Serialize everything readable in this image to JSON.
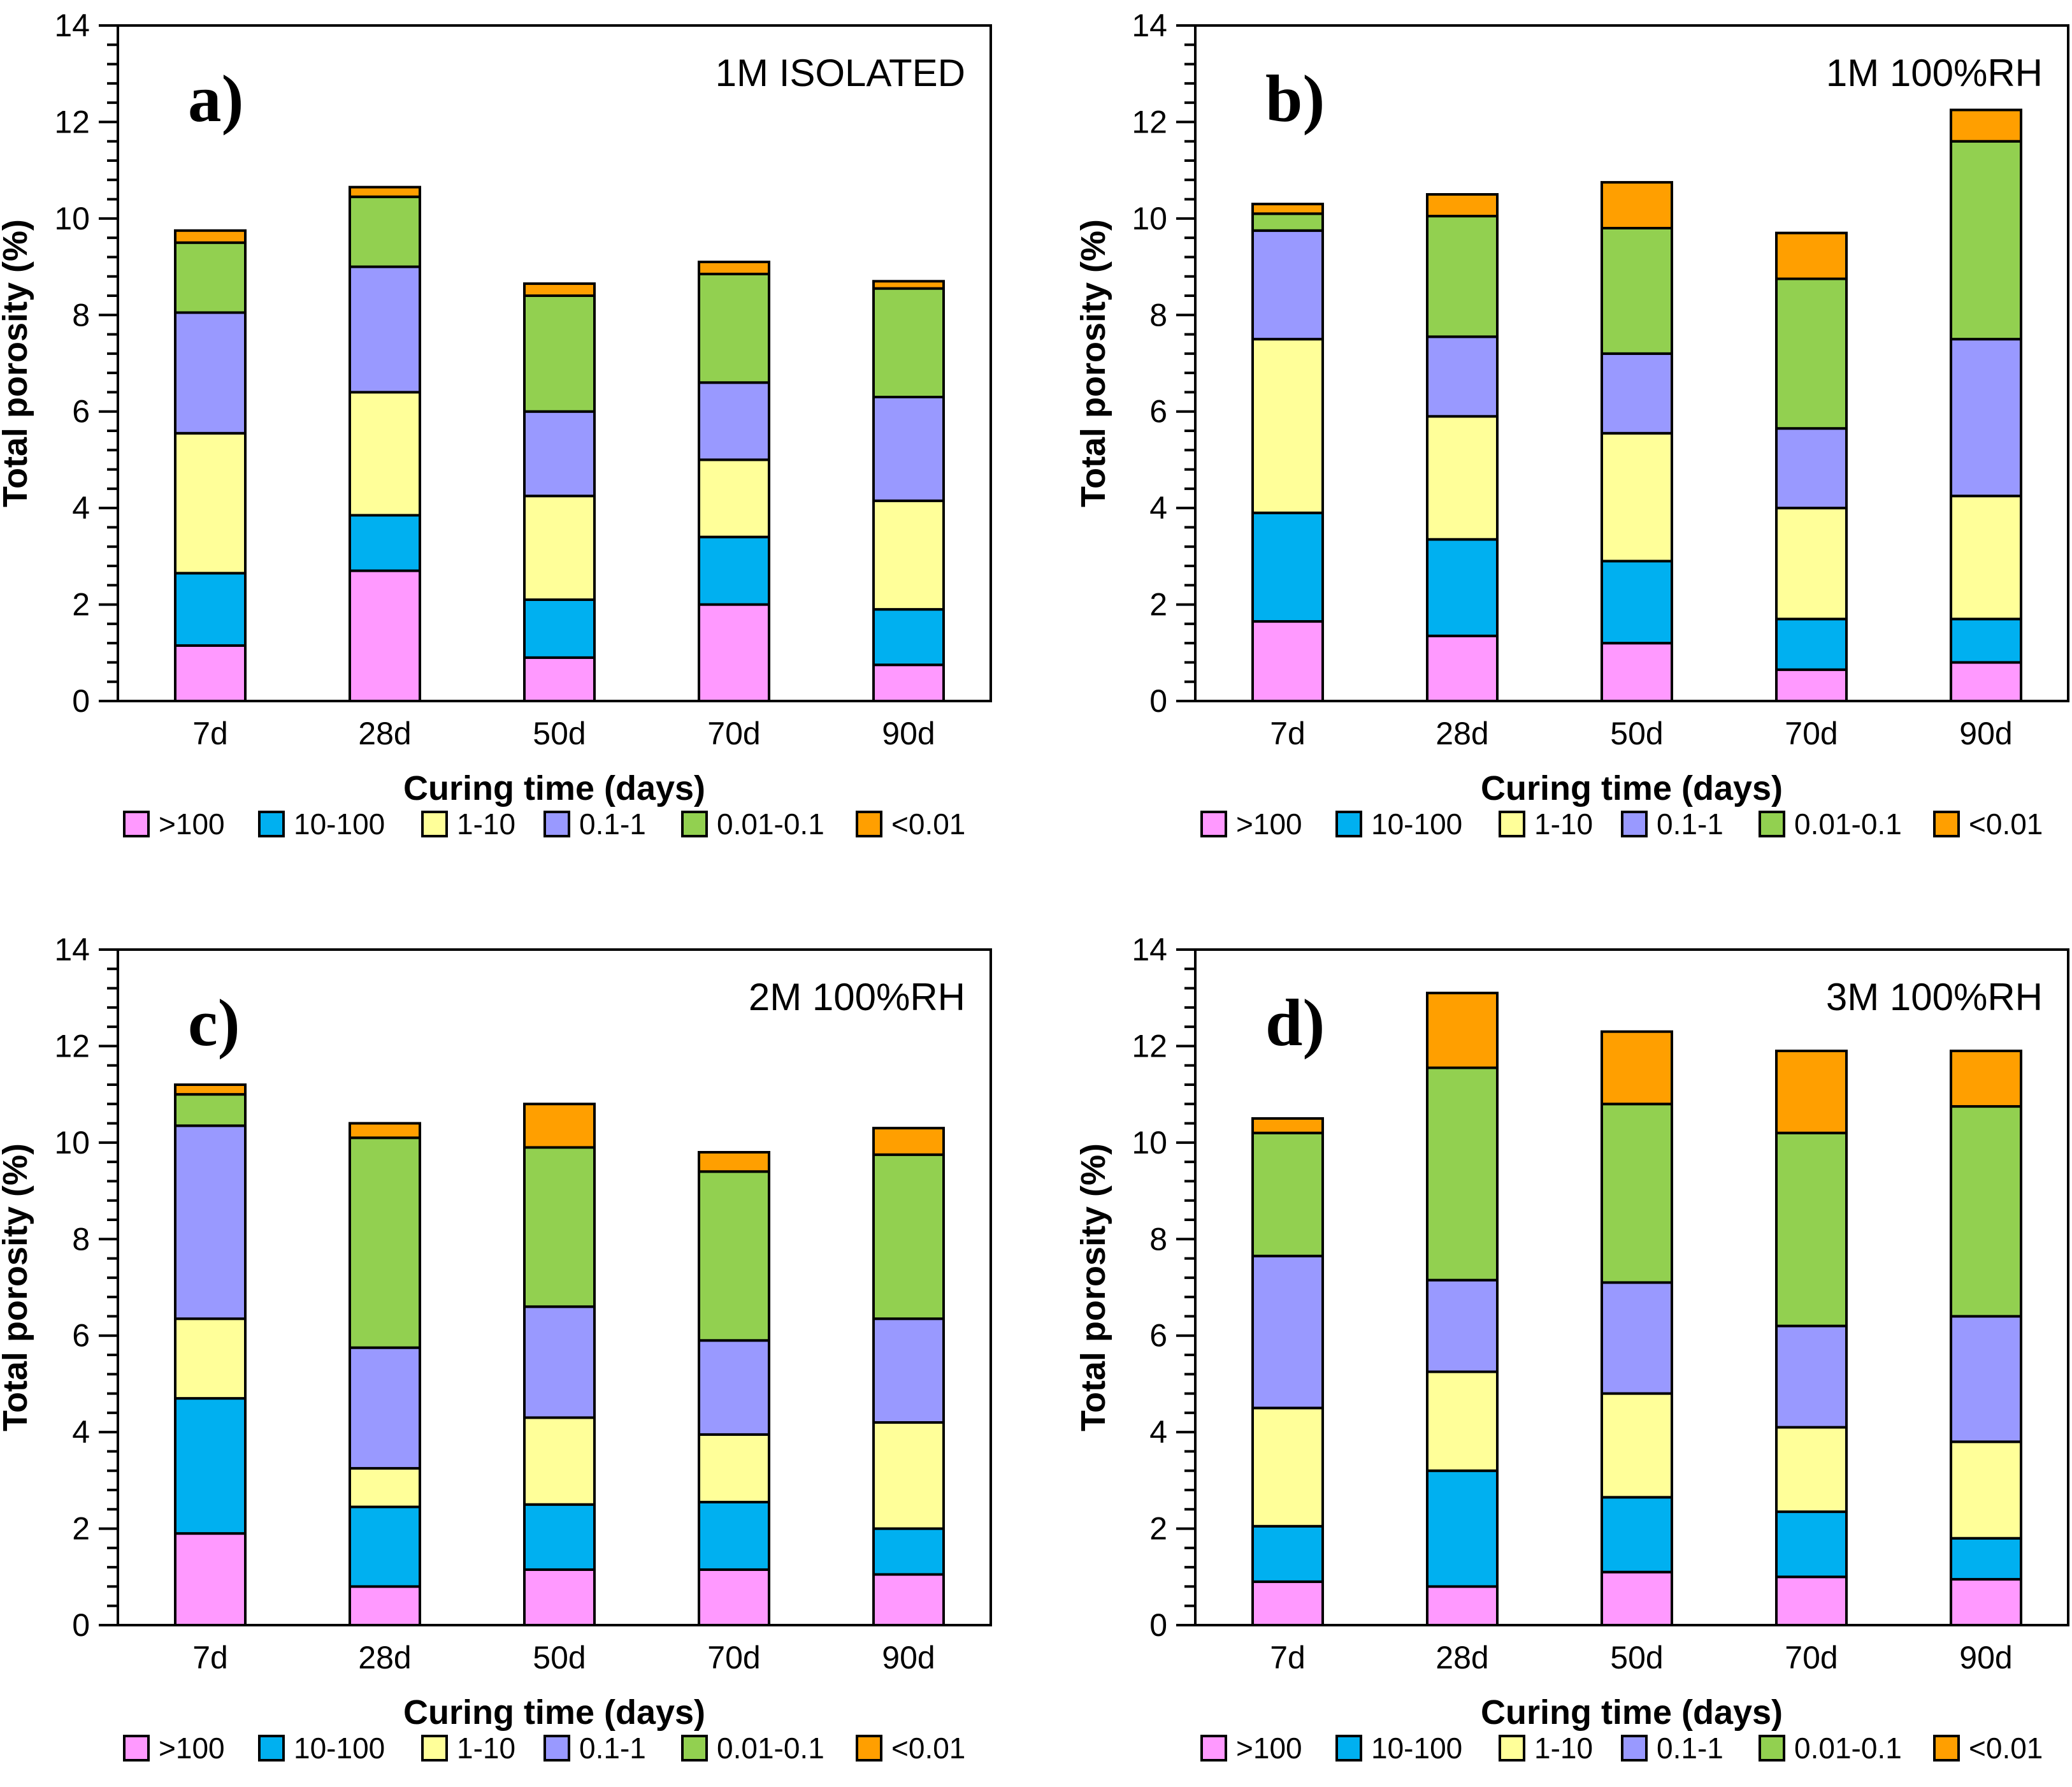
{
  "page": {
    "background": "#FFFFFF"
  },
  "axis": {
    "x_label": "Curing time (days)",
    "y_label": "Total porosity (%)",
    "y_ticks": [
      "0",
      "2",
      "4",
      "6",
      "8",
      "10",
      "12",
      "14"
    ],
    "y_max": 14,
    "y_major_step": 2,
    "y_minor_step": 0.4
  },
  "categories": [
    "7d",
    "28d",
    "50d",
    "70d",
    "90d"
  ],
  "legend": {
    "items": [
      {
        "label": ">100",
        "color": "#FF99FF",
        "icon": "legend-swatch-pink"
      },
      {
        "label": "10-100",
        "color": "#00B0F0",
        "icon": "legend-swatch-blue"
      },
      {
        "label": "1-10",
        "color": "#FFFF99",
        "icon": "legend-swatch-yellow"
      },
      {
        "label": "0.1-1",
        "color": "#9999FF",
        "icon": "legend-swatch-purple"
      },
      {
        "label": "0.01-0.1",
        "color": "#92D050",
        "icon": "legend-swatch-green"
      },
      {
        "label": "<0.01",
        "color": "#FF9F00",
        "icon": "legend-swatch-orange"
      }
    ]
  },
  "chart_data": [
    {
      "type": "bar",
      "stacked": true,
      "panel": "a)",
      "title": "1M ISOLATED",
      "xlabel": "Curing time (days)",
      "ylabel": "Total porosity (%)",
      "ylim": [
        0,
        14
      ],
      "grid": false,
      "legend_position": "bottom",
      "categories": [
        "7d",
        "28d",
        "50d",
        "70d",
        "90d"
      ],
      "series": [
        {
          "name": ">100",
          "color": "#FF99FF",
          "values": [
            1.15,
            2.7,
            0.9,
            2.0,
            0.75
          ]
        },
        {
          "name": "10-100",
          "color": "#00B0F0",
          "values": [
            1.5,
            1.15,
            1.2,
            1.4,
            1.15
          ]
        },
        {
          "name": "1-10",
          "color": "#FFFF99",
          "values": [
            2.9,
            2.55,
            2.15,
            1.6,
            2.25
          ]
        },
        {
          "name": "0.1-1",
          "color": "#9999FF",
          "values": [
            2.5,
            2.6,
            1.75,
            1.6,
            2.15
          ]
        },
        {
          "name": "0.01-0.1",
          "color": "#92D050",
          "values": [
            1.45,
            1.45,
            2.4,
            2.25,
            2.25
          ]
        },
        {
          "name": "<0.01",
          "color": "#FF9F00",
          "values": [
            0.25,
            0.2,
            0.25,
            0.25,
            0.15
          ]
        }
      ],
      "totals": [
        9.75,
        10.65,
        8.65,
        9.1,
        8.7
      ]
    },
    {
      "type": "bar",
      "stacked": true,
      "panel": "b)",
      "title": "1M 100%RH",
      "xlabel": "Curing time (days)",
      "ylabel": "Total porosity (%)",
      "ylim": [
        0,
        14
      ],
      "grid": false,
      "legend_position": "bottom",
      "categories": [
        "7d",
        "28d",
        "50d",
        "70d",
        "90d"
      ],
      "series": [
        {
          "name": ">100",
          "color": "#FF99FF",
          "values": [
            1.65,
            1.35,
            1.2,
            0.65,
            0.8
          ]
        },
        {
          "name": "10-100",
          "color": "#00B0F0",
          "values": [
            2.25,
            2.0,
            1.7,
            1.05,
            0.9
          ]
        },
        {
          "name": "1-10",
          "color": "#FFFF99",
          "values": [
            3.6,
            2.55,
            2.65,
            2.3,
            2.55
          ]
        },
        {
          "name": "0.1-1",
          "color": "#9999FF",
          "values": [
            2.25,
            1.65,
            1.65,
            1.65,
            3.25
          ]
        },
        {
          "name": "0.01-0.1",
          "color": "#92D050",
          "values": [
            0.35,
            2.5,
            2.6,
            3.1,
            4.1
          ]
        },
        {
          "name": "<0.01",
          "color": "#FF9F00",
          "values": [
            0.2,
            0.45,
            0.95,
            0.95,
            0.65
          ]
        }
      ],
      "totals": [
        10.3,
        10.5,
        10.75,
        9.7,
        12.25
      ]
    },
    {
      "type": "bar",
      "stacked": true,
      "panel": "c)",
      "title": "2M 100%RH",
      "xlabel": "Curing time (days)",
      "ylabel": "Total porosity (%)",
      "ylim": [
        0,
        14
      ],
      "grid": false,
      "legend_position": "bottom",
      "categories": [
        "7d",
        "28d",
        "50d",
        "70d",
        "90d"
      ],
      "series": [
        {
          "name": ">100",
          "color": "#FF99FF",
          "values": [
            1.9,
            0.8,
            1.15,
            1.15,
            1.05
          ]
        },
        {
          "name": "10-100",
          "color": "#00B0F0",
          "values": [
            2.8,
            1.65,
            1.35,
            1.4,
            0.95
          ]
        },
        {
          "name": "1-10",
          "color": "#FFFF99",
          "values": [
            1.65,
            0.8,
            1.8,
            1.4,
            2.2
          ]
        },
        {
          "name": "0.1-1",
          "color": "#9999FF",
          "values": [
            4.0,
            2.5,
            2.3,
            1.95,
            2.15
          ]
        },
        {
          "name": "0.01-0.1",
          "color": "#92D050",
          "values": [
            0.65,
            4.35,
            3.3,
            3.5,
            3.4
          ]
        },
        {
          "name": "<0.01",
          "color": "#FF9F00",
          "values": [
            0.2,
            0.3,
            0.9,
            0.4,
            0.55
          ]
        }
      ],
      "totals": [
        11.2,
        10.4,
        10.8,
        9.8,
        10.3
      ]
    },
    {
      "type": "bar",
      "stacked": true,
      "panel": "d)",
      "title": "3M 100%RH",
      "xlabel": "Curing time (days)",
      "ylabel": "Total porosity (%)",
      "ylim": [
        0,
        14
      ],
      "grid": false,
      "legend_position": "bottom",
      "categories": [
        "7d",
        "28d",
        "50d",
        "70d",
        "90d"
      ],
      "series": [
        {
          "name": ">100",
          "color": "#FF99FF",
          "values": [
            0.9,
            0.8,
            1.1,
            1.0,
            0.95
          ]
        },
        {
          "name": "10-100",
          "color": "#00B0F0",
          "values": [
            1.15,
            2.4,
            1.55,
            1.35,
            0.85
          ]
        },
        {
          "name": "1-10",
          "color": "#FFFF99",
          "values": [
            2.45,
            2.05,
            2.15,
            1.75,
            2.0
          ]
        },
        {
          "name": "0.1-1",
          "color": "#9999FF",
          "values": [
            3.15,
            1.9,
            2.3,
            2.1,
            2.6
          ]
        },
        {
          "name": "0.01-0.1",
          "color": "#92D050",
          "values": [
            2.55,
            4.4,
            3.7,
            4.0,
            4.35
          ]
        },
        {
          "name": "<0.01",
          "color": "#FF9F00",
          "values": [
            0.3,
            1.55,
            1.5,
            1.7,
            1.15
          ]
        }
      ],
      "totals": [
        10.5,
        13.1,
        12.3,
        11.9,
        11.9
      ]
    }
  ]
}
